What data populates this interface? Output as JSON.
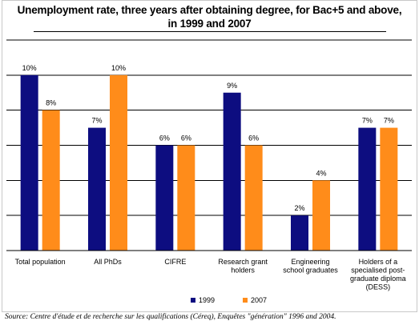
{
  "chart_data": {
    "type": "bar",
    "title_line1": "Unemployment rate, three years after obtaining degree, for Bac+5 and above,",
    "title_line2": "in 1999 and 2007",
    "categories": [
      [
        "Total population"
      ],
      [
        "All PhDs"
      ],
      [
        "CIFRE"
      ],
      [
        "Research grant",
        "holders"
      ],
      [
        "Engineering",
        "school graduates"
      ],
      [
        "Holders of a",
        "specialised post-",
        "graduate diploma",
        "(DESS)"
      ]
    ],
    "series": [
      {
        "name": "1999",
        "values": [
          10,
          7,
          6,
          9,
          2,
          7
        ],
        "color": "#0d0d80"
      },
      {
        "name": "2007",
        "values": [
          8,
          10,
          6,
          6,
          4,
          7
        ],
        "color": "#ff8c1a"
      }
    ],
    "value_suffix": "%",
    "ylim": [
      0,
      12
    ],
    "grid": true,
    "legend": "bottom-right"
  },
  "source": "Source: Centre d'étude et de recherche sur les qualifications (Céreq), Enquêtes \"génération\" 1996 and 2004."
}
